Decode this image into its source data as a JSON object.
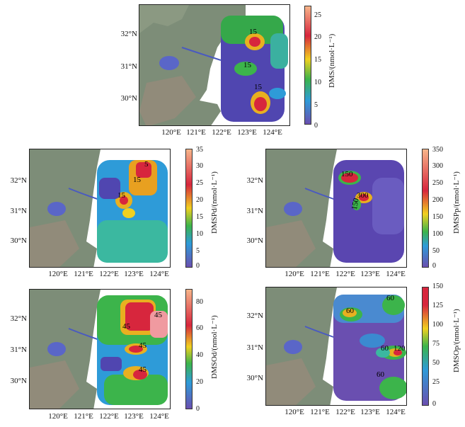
{
  "panels": [
    {
      "id": "dms",
      "colorbar_title": "DMS/(nmol·L⁻¹)",
      "colorbar_ticks": [
        "25",
        "20",
        "15",
        "10",
        "5",
        "0"
      ],
      "lat_labels": [
        "32°N",
        "31°N",
        "30°N"
      ],
      "lon_labels": [
        "120°E",
        "121°E",
        "122°E",
        "123°E",
        "124°E"
      ],
      "contour_labels": [
        "15",
        "15",
        "15"
      ]
    },
    {
      "id": "dmspd",
      "colorbar_title": "DMSPd/(nmol·L⁻¹)",
      "colorbar_ticks": [
        "35",
        "30",
        "25",
        "20",
        "15",
        "10",
        "5",
        "0"
      ],
      "lat_labels": [
        "32°N",
        "31°N",
        "30°N"
      ],
      "lon_labels": [
        "120°E",
        "121°E",
        "122°E",
        "123°E",
        "124°E"
      ],
      "contour_labels": [
        "5",
        "15",
        "15"
      ]
    },
    {
      "id": "dmspp",
      "colorbar_title": "DMSPp/(nmol·L⁻¹)",
      "colorbar_ticks": [
        "350",
        "300",
        "250",
        "200",
        "150",
        "100",
        "50",
        "0"
      ],
      "lat_labels": [
        "32°N",
        "31°N",
        "30°N"
      ],
      "lon_labels": [
        "120°E",
        "121°E",
        "122°E",
        "123°E",
        "124°E"
      ],
      "contour_labels": [
        "150",
        "300",
        "150"
      ]
    },
    {
      "id": "dmsod",
      "colorbar_title": "DMSOd/(nmol·L⁻¹)",
      "colorbar_ticks": [
        "80",
        "60",
        "40",
        "20",
        "0"
      ],
      "lat_labels": [
        "32°N",
        "31°N",
        "30°N"
      ],
      "lon_labels": [
        "120°E",
        "121°E",
        "122°E",
        "123°E",
        "124°E"
      ],
      "contour_labels": [
        "45",
        "45",
        "45",
        "45"
      ]
    },
    {
      "id": "dmsop",
      "colorbar_title": "DMSOp/(nmol·L⁻¹)",
      "colorbar_ticks": [
        "150",
        "125",
        "100",
        "75",
        "50",
        "25",
        "0"
      ],
      "lat_labels": [
        "32°N",
        "31°N",
        "30°N"
      ],
      "lon_labels": [
        "120°E",
        "121°E",
        "122°E",
        "123°E",
        "124°E"
      ],
      "contour_labels": [
        "60",
        "60",
        "60",
        "120",
        "60"
      ]
    }
  ],
  "colors": {
    "land": "#7f8f7a",
    "sea": "#ffffff",
    "low": "#6a4fb0",
    "mid": "#2e9bd8",
    "green": "#3cb44b",
    "yellow": "#f0d020",
    "high": "#d7263d",
    "peak": "#f7b58a"
  }
}
